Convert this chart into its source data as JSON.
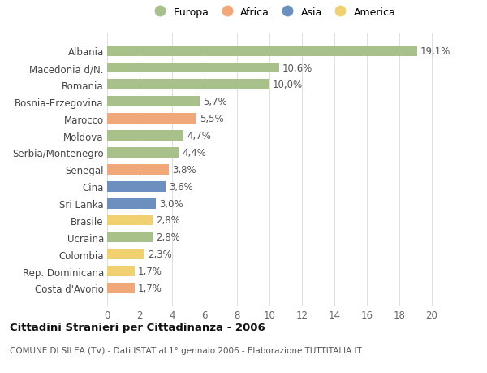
{
  "countries": [
    "Costa d'Avorio",
    "Rep. Dominicana",
    "Colombia",
    "Ucraina",
    "Brasile",
    "Sri Lanka",
    "Cina",
    "Senegal",
    "Serbia/Montenegro",
    "Moldova",
    "Marocco",
    "Bosnia-Erzegovina",
    "Romania",
    "Macedonia d/N.",
    "Albania"
  ],
  "values": [
    1.7,
    1.7,
    2.3,
    2.8,
    2.8,
    3.0,
    3.6,
    3.8,
    4.4,
    4.7,
    5.5,
    5.7,
    10.0,
    10.6,
    19.1
  ],
  "labels": [
    "1,7%",
    "1,7%",
    "2,3%",
    "2,8%",
    "2,8%",
    "3,0%",
    "3,6%",
    "3,8%",
    "4,4%",
    "4,7%",
    "5,5%",
    "5,7%",
    "10,0%",
    "10,6%",
    "19,1%"
  ],
  "regions": [
    "Africa",
    "America",
    "America",
    "Europa",
    "America",
    "Asia",
    "Asia",
    "Africa",
    "Europa",
    "Europa",
    "Africa",
    "Europa",
    "Europa",
    "Europa",
    "Europa"
  ],
  "region_colors": {
    "Europa": "#a8c08a",
    "Africa": "#f0a87a",
    "Asia": "#6b8fbe",
    "America": "#f0d070"
  },
  "legend_order": [
    "Europa",
    "Africa",
    "Asia",
    "America"
  ],
  "legend_colors": [
    "#a8c08a",
    "#f0a87a",
    "#6b8fbe",
    "#f0d070"
  ],
  "background_color": "#ffffff",
  "grid_color": "#dddddd",
  "tick_label_fontsize": 8.5,
  "bar_label_fontsize": 8.5,
  "title": "Cittadini Stranieri per Cittadinanza - 2006",
  "subtitle": "COMUNE DI SILEA (TV) - Dati ISTAT al 1° gennaio 2006 - Elaborazione TUTTITALIA.IT",
  "xlim": [
    0,
    21
  ],
  "xticks": [
    0,
    2,
    4,
    6,
    8,
    10,
    12,
    14,
    16,
    18,
    20
  ]
}
